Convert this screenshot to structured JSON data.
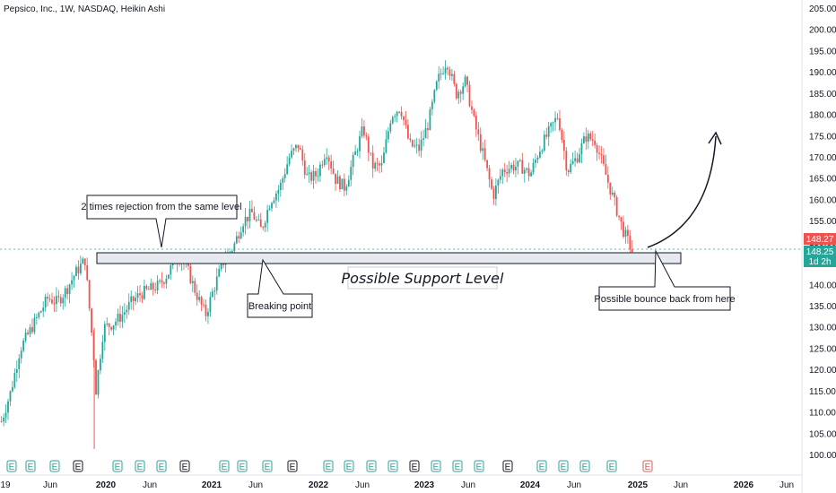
{
  "header": {
    "title": "Pepsico, Inc., 1W, NASDAQ, Heikin Ashi"
  },
  "colors": {
    "up": "#26a69a",
    "down": "#ef5350",
    "grid": "#f0f3fa",
    "axis": "#131722",
    "support_fill": "#e6e9ef",
    "support_stroke": "#131722",
    "badge_red": "#ef5350",
    "badge_teal": "#26a69a"
  },
  "price_axis": {
    "ticks": [
      "100.00",
      "105.00",
      "110.00",
      "115.00",
      "120.00",
      "125.00",
      "130.00",
      "135.00",
      "140.00",
      "145.00",
      "150.00",
      "155.00",
      "160.00",
      "165.00",
      "170.00",
      "175.00",
      "180.00",
      "185.00",
      "190.00",
      "195.00",
      "200.00",
      "205.00"
    ],
    "last_price": "148.27",
    "close_price": "148.25",
    "countdown": "1d 2h"
  },
  "time_axis": {
    "labels": [
      "19",
      "Jun",
      "2020",
      "Jun",
      "2021",
      "Jun",
      "2022",
      "Jun",
      "2023",
      "Jun",
      "2024",
      "Jun",
      "2025",
      "Jun",
      "2026",
      "Jun"
    ]
  },
  "annotations": {
    "rejection": "2 times rejection from the same level",
    "breaking": "Breaking point",
    "support": "Possible Support Level",
    "bounce": "Possible bounce back from here"
  },
  "events": [
    "E",
    "E",
    "E",
    "E",
    "E",
    "E",
    "E",
    "E",
    "E",
    "E",
    "E",
    "E",
    "E",
    "E",
    "E",
    "E",
    "E",
    "E",
    "E",
    "E",
    "E",
    "E",
    "E",
    "E",
    "E",
    "E",
    "E",
    "E",
    "E"
  ],
  "chart_data": {
    "type": "candlestick",
    "title": "Pepsico, Inc., 1W, NASDAQ, Heikin Ashi",
    "y_range": [
      99,
      206
    ],
    "x_range": [
      "2019-04",
      "2026-07"
    ],
    "support_level": [
      145.0,
      147.3
    ],
    "last_price": 148.27,
    "close_price": 148.25,
    "path": [
      [
        "2019-05",
        108
      ],
      [
        "2019-06",
        115
      ],
      [
        "2019-07",
        125
      ],
      [
        "2019-09",
        133
      ],
      [
        "2019-10",
        137
      ],
      [
        "2019-11",
        136
      ],
      [
        "2019-12",
        139
      ],
      [
        "2020-01",
        143
      ],
      [
        "2020-02",
        146
      ],
      [
        "2020-03",
        122
      ],
      [
        "2020-03",
        112
      ],
      [
        "2020-04",
        130
      ],
      [
        "2020-05",
        131
      ],
      [
        "2020-06",
        133
      ],
      [
        "2020-07",
        136
      ],
      [
        "2020-08",
        138
      ],
      [
        "2020-09",
        139
      ],
      [
        "2020-10",
        140
      ],
      [
        "2020-11",
        143
      ],
      [
        "2020-12",
        147
      ],
      [
        "2021-01",
        144
      ],
      [
        "2021-02",
        138
      ],
      [
        "2021-03",
        133
      ],
      [
        "2021-04",
        140
      ],
      [
        "2021-05",
        146
      ],
      [
        "2021-06",
        149
      ],
      [
        "2021-07",
        155
      ],
      [
        "2021-08",
        157
      ],
      [
        "2021-09",
        153
      ],
      [
        "2021-10",
        160
      ],
      [
        "2021-11",
        163
      ],
      [
        "2021-12",
        170
      ],
      [
        "2022-01",
        173
      ],
      [
        "2022-02",
        165
      ],
      [
        "2022-03",
        166
      ],
      [
        "2022-04",
        172
      ],
      [
        "2022-05",
        165
      ],
      [
        "2022-06",
        163
      ],
      [
        "2022-07",
        170
      ],
      [
        "2022-08",
        177
      ],
      [
        "2022-09",
        168
      ],
      [
        "2022-10",
        168
      ],
      [
        "2022-11",
        180
      ],
      [
        "2022-12",
        182
      ],
      [
        "2023-01",
        173
      ],
      [
        "2023-02",
        172
      ],
      [
        "2023-03",
        178
      ],
      [
        "2023-04",
        188
      ],
      [
        "2023-05",
        193
      ],
      [
        "2023-06",
        185
      ],
      [
        "2023-07",
        188
      ],
      [
        "2023-08",
        178
      ],
      [
        "2023-09",
        170
      ],
      [
        "2023-10",
        161
      ],
      [
        "2023-11",
        167
      ],
      [
        "2023-12",
        168
      ],
      [
        "2024-01",
        168
      ],
      [
        "2024-02",
        166
      ],
      [
        "2024-03",
        172
      ],
      [
        "2024-04",
        176
      ],
      [
        "2024-05",
        180
      ],
      [
        "2024-06",
        167
      ],
      [
        "2024-07",
        170
      ],
      [
        "2024-08",
        175
      ],
      [
        "2024-09",
        174
      ],
      [
        "2024-10",
        167
      ],
      [
        "2024-11",
        160
      ],
      [
        "2024-12",
        153
      ],
      [
        "2025-01",
        148
      ]
    ]
  }
}
